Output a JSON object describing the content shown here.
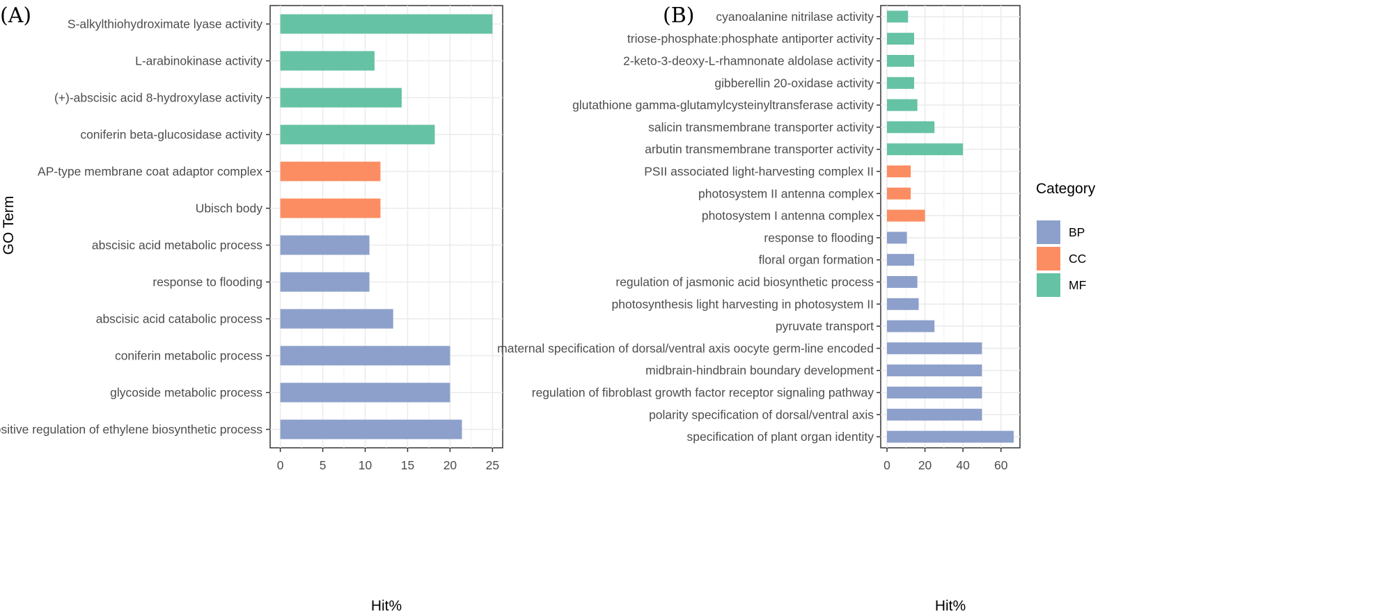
{
  "colors": {
    "BP": "#8DA0CB",
    "CC": "#FC8D62",
    "MF": "#66C2A5"
  },
  "legend": {
    "title": "Category",
    "items": [
      {
        "key": "BP",
        "label": "BP"
      },
      {
        "key": "CC",
        "label": "CC"
      },
      {
        "key": "MF",
        "label": "MF"
      }
    ]
  },
  "chart_data": [
    {
      "panel_label": "(A)",
      "type": "bar",
      "orientation": "horizontal",
      "xlabel": "Hit%",
      "ylabel": "GO Term",
      "xlim": [
        -1.2,
        26.2
      ],
      "xticks": [
        0,
        5,
        10,
        15,
        20,
        25
      ],
      "grid": true,
      "categories": [
        "S-alkylthiohydroximate lyase activity",
        "L-arabinokinase activity",
        "(+)-abscisic acid 8-hydroxylase activity",
        "coniferin beta-glucosidase activity",
        "AP-type membrane coat adaptor complex",
        "Ubisch body",
        "abscisic acid metabolic process",
        "response to flooding",
        "abscisic acid catabolic process",
        "coniferin metabolic process",
        "glycoside metabolic process",
        "positive regulation of ethylene biosynthetic process"
      ],
      "values": [
        25,
        11.1,
        14.3,
        18.2,
        11.8,
        11.8,
        10.5,
        10.5,
        13.3,
        20,
        20,
        21.4
      ],
      "groups": [
        "MF",
        "MF",
        "MF",
        "MF",
        "CC",
        "CC",
        "BP",
        "BP",
        "BP",
        "BP",
        "BP",
        "BP"
      ]
    },
    {
      "panel_label": "(B)",
      "type": "bar",
      "orientation": "horizontal",
      "xlabel": "Hit%",
      "ylabel": "",
      "xlim": [
        -3.3,
        70
      ],
      "xticks": [
        0,
        20,
        40,
        60
      ],
      "grid": true,
      "categories": [
        "cyanoalanine nitrilase activity",
        "triose-phosphate:phosphate antiporter activity",
        "2-keto-3-deoxy-L-rhamnonate aldolase activity",
        "gibberellin 20-oxidase activity",
        "glutathione gamma-glutamylcysteinyltransferase activity",
        "salicin transmembrane transporter activity",
        "arbutin transmembrane transporter activity",
        "PSII associated light-harvesting complex II",
        "photosystem II antenna complex",
        "photosystem I antenna complex",
        "response to flooding",
        "floral organ formation",
        "regulation of jasmonic acid biosynthetic process",
        "photosynthesis  light harvesting in photosystem II",
        "pyruvate transport",
        "maternal specification of dorsal/ventral axis  oocyte  germ-line encoded",
        "midbrain-hindbrain boundary development",
        "regulation of fibroblast growth factor receptor signaling pathway",
        "polarity specification of dorsal/ventral axis",
        "specification of plant organ identity"
      ],
      "values": [
        11.1,
        14.3,
        14.3,
        14.3,
        16,
        25,
        40,
        12.5,
        12.5,
        20,
        10.5,
        14.3,
        16,
        16.7,
        25,
        50,
        50,
        50,
        50,
        66.7
      ],
      "groups": [
        "MF",
        "MF",
        "MF",
        "MF",
        "MF",
        "MF",
        "MF",
        "CC",
        "CC",
        "CC",
        "BP",
        "BP",
        "BP",
        "BP",
        "BP",
        "BP",
        "BP",
        "BP",
        "BP",
        "BP"
      ]
    }
  ]
}
